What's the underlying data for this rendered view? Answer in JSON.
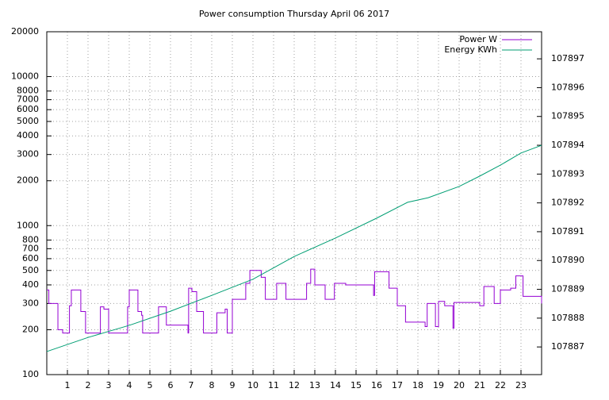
{
  "chart_data": {
    "type": "line",
    "title": "Power consumption Thursday April 06 2017",
    "xlim": [
      0,
      24
    ],
    "xticks": [
      1,
      2,
      3,
      4,
      5,
      6,
      7,
      8,
      9,
      10,
      11,
      12,
      13,
      14,
      15,
      16,
      17,
      18,
      19,
      20,
      21,
      22,
      23
    ],
    "ylim": [
      100,
      20000
    ],
    "log_y": true,
    "yticks": [
      100,
      200,
      300,
      400,
      500,
      600,
      700,
      800,
      1000,
      2000,
      3000,
      4000,
      5000,
      6000,
      7000,
      8000,
      10000,
      20000
    ],
    "y2lim": [
      107886.04,
      107897.94
    ],
    "y2ticks": [
      107887,
      107888,
      107889,
      107890,
      107891,
      107892,
      107893,
      107894,
      107895,
      107896,
      107897
    ],
    "grid": true,
    "legend": "top-right",
    "series": [
      {
        "name": "Power W",
        "color": "#9400d3",
        "step": true,
        "x": [
          0,
          0.1,
          0.54,
          0.77,
          1.1,
          1.19,
          1.65,
          1.88,
          2.6,
          2.77,
          3.0,
          3.92,
          4.0,
          4.42,
          4.6,
          4.65,
          5.42,
          5.8,
          6.85,
          6.88,
          7.04,
          7.27,
          7.6,
          8.25,
          8.65,
          8.75,
          9.0,
          9.65,
          9.85,
          10.4,
          10.6,
          11.15,
          11.6,
          12.6,
          12.8,
          13.0,
          13.5,
          13.95,
          14.5,
          15.85,
          15.9,
          16.6,
          17.0,
          17.4,
          18.35,
          18.45,
          18.85,
          19.0,
          19.3,
          19.7,
          19.75,
          21.0,
          21.2,
          21.7,
          22.0,
          22.5,
          22.75,
          23.1,
          24.0
        ],
        "values": [
          370,
          300,
          200,
          190,
          290,
          370,
          265,
          190,
          285,
          275,
          190,
          285,
          370,
          265,
          250,
          190,
          285,
          215,
          190,
          380,
          360,
          265,
          190,
          260,
          275,
          190,
          320,
          410,
          500,
          450,
          320,
          410,
          320,
          410,
          510,
          400,
          320,
          410,
          400,
          340,
          490,
          380,
          290,
          225,
          210,
          300,
          210,
          310,
          290,
          205,
          305,
          290,
          390,
          300,
          370,
          380,
          460,
          335,
          300
        ]
      },
      {
        "name": "Energy KWh",
        "color": "#009e73",
        "axis": "y2",
        "x": [
          0,
          2,
          4,
          6,
          8,
          10,
          12,
          14,
          16,
          17.5,
          18.5,
          20,
          21,
          22,
          23,
          24
        ],
        "values": [
          107886.84,
          107887.33,
          107887.75,
          107888.24,
          107888.79,
          107889.35,
          107890.14,
          107890.78,
          107891.47,
          107892.02,
          107892.18,
          107892.57,
          107892.93,
          107893.31,
          107893.73,
          107894.0
        ]
      }
    ]
  }
}
